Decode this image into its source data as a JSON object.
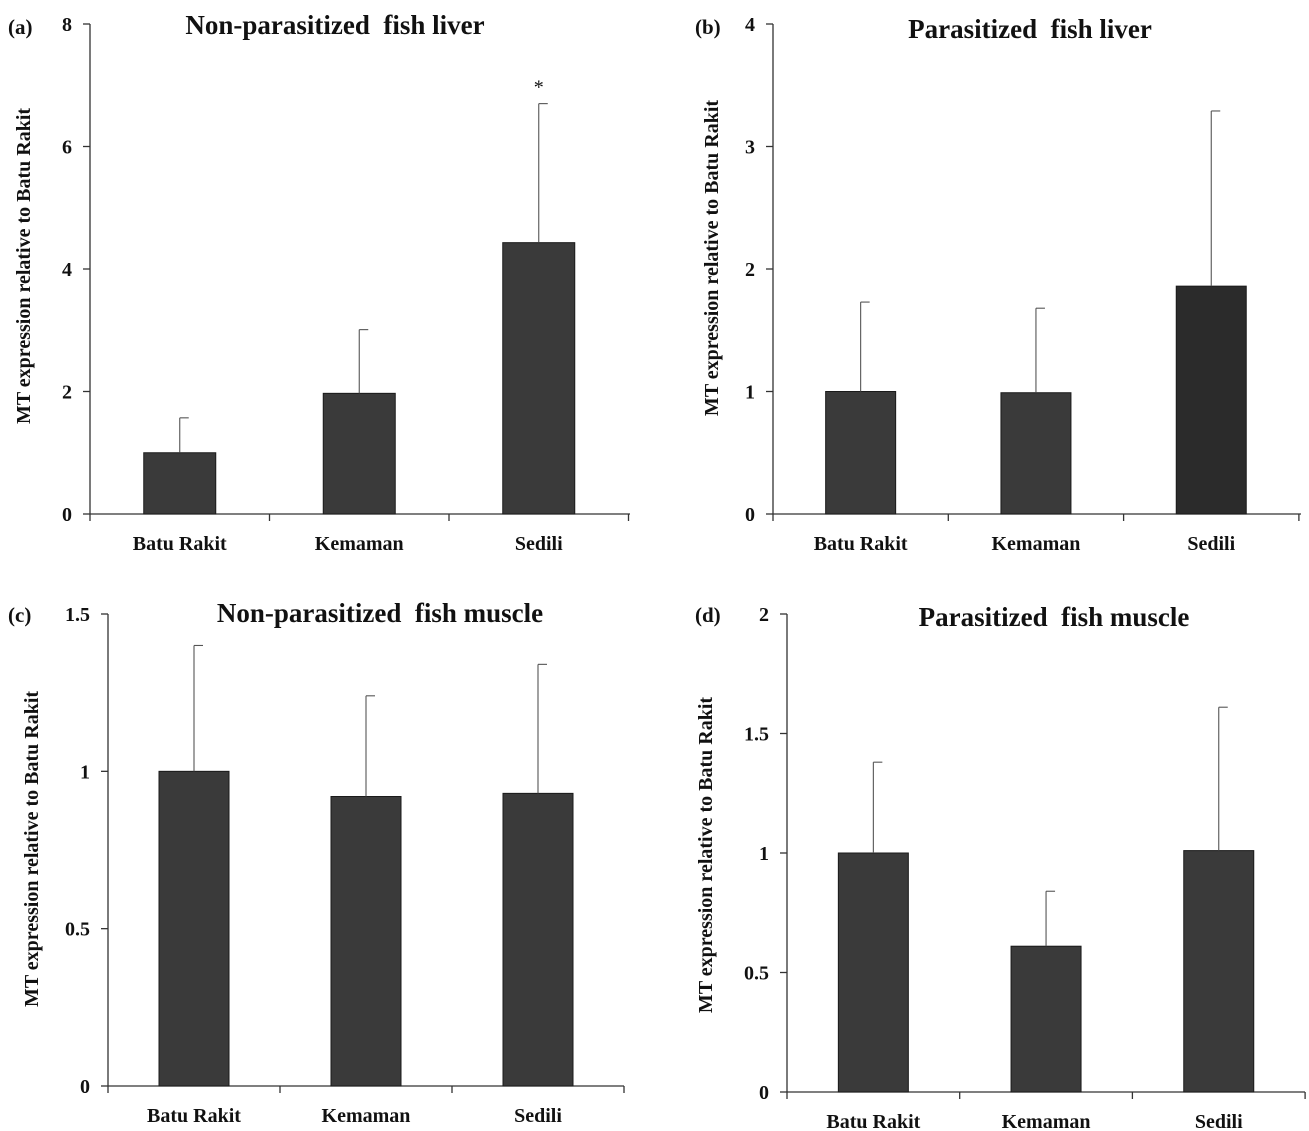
{
  "chart_data": [
    {
      "type": "bar",
      "panel": "(a)",
      "title": "Non-parasitized  fish liver",
      "ylabel": "MT expression relative to Batu Rakit",
      "xlabel": "",
      "categories": [
        "Batu Rakit",
        "Kemaman",
        "Sedili"
      ],
      "values": [
        1.0,
        1.97,
        4.43
      ],
      "error": [
        0.57,
        1.04,
        2.27
      ],
      "annotations": [
        "",
        "",
        "*"
      ],
      "ylim": [
        0,
        8
      ],
      "yticks": [
        0,
        2,
        4,
        6,
        8
      ],
      "ytick_labels": [
        "0",
        "2",
        "4",
        "6",
        "8"
      ],
      "bar_colors": [
        "#3a3a3a",
        "#3a3a3a",
        "#3a3a3a"
      ],
      "grid": false
    },
    {
      "type": "bar",
      "panel": "(b)",
      "title": "Parasitized  fish liver",
      "ylabel": "MT expression relative to Batu Rakit",
      "xlabel": "",
      "categories": [
        "Batu Rakit",
        "Kemaman",
        "Sedili"
      ],
      "values": [
        1.0,
        0.99,
        1.86
      ],
      "error": [
        0.73,
        0.69,
        1.43
      ],
      "annotations": [
        "",
        "",
        ""
      ],
      "ylim": [
        0,
        4
      ],
      "yticks": [
        0,
        1,
        2,
        3,
        4
      ],
      "ytick_labels": [
        "0",
        "1",
        "2",
        "3",
        "4"
      ],
      "bar_colors": [
        "#3a3a3a",
        "#3a3a3a",
        "#2b2b2b"
      ],
      "grid": false
    },
    {
      "type": "bar",
      "panel": "(c)",
      "title": "Non-parasitized  fish muscle",
      "ylabel": "MT expression relative to Batu Rakit",
      "xlabel": "",
      "categories": [
        "Batu Rakit",
        "Kemaman",
        "Sedili"
      ],
      "values": [
        1.0,
        0.92,
        0.93
      ],
      "error": [
        0.4,
        0.32,
        0.41
      ],
      "annotations": [
        "",
        "",
        ""
      ],
      "ylim": [
        0,
        1.5
      ],
      "yticks": [
        0,
        0.5,
        1,
        1.5
      ],
      "ytick_labels": [
        "0",
        "0.5",
        "1",
        "1.5"
      ],
      "bar_colors": [
        "#3a3a3a",
        "#3a3a3a",
        "#3a3a3a"
      ],
      "grid": false
    },
    {
      "type": "bar",
      "panel": "(d)",
      "title": "Parasitized  fish muscle",
      "ylabel": "MT expression relative to Batu Rakit",
      "xlabel": "",
      "categories": [
        "Batu Rakit",
        "Kemaman",
        "Sedili"
      ],
      "values": [
        1.0,
        0.61,
        1.01
      ],
      "error": [
        0.38,
        0.23,
        0.6
      ],
      "annotations": [
        "",
        "",
        ""
      ],
      "ylim": [
        0,
        2
      ],
      "yticks": [
        0,
        0.5,
        1,
        1.5,
        2
      ],
      "ytick_labels": [
        "0",
        "0.5",
        "1",
        "1.5",
        "2"
      ],
      "bar_colors": [
        "#3a3a3a",
        "#3a3a3a",
        "#3a3a3a"
      ],
      "grid": false
    }
  ]
}
